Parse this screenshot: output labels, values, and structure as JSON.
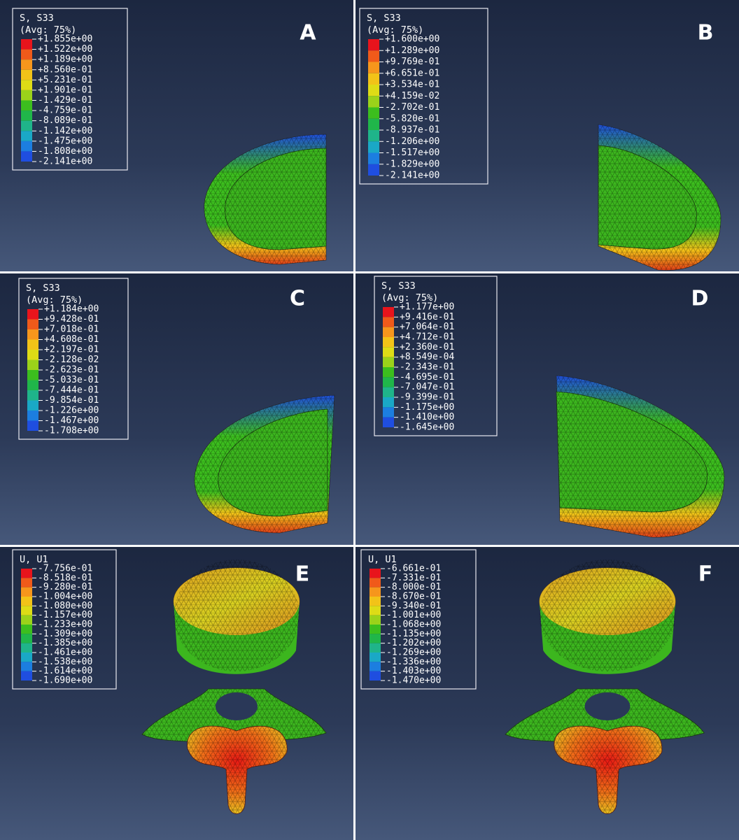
{
  "panels": [
    {
      "letter": "A",
      "legend_title": [
        "S, S33",
        "(Avg: 75%)"
      ],
      "legend_values": [
        "+1.855e+00",
        "+1.522e+00",
        "+1.189e+00",
        "+8.560e-01",
        "+5.231e-01",
        "+1.901e-01",
        "-1.429e-01",
        "-4.759e-01",
        "-8.089e-01",
        "-1.142e+00",
        "-1.475e+00",
        "-1.808e+00",
        "-2.141e+00"
      ]
    },
    {
      "letter": "B",
      "legend_title": [
        "S, S33",
        "(Avg: 75%)"
      ],
      "legend_values": [
        "+1.600e+00",
        "+1.289e+00",
        "+9.769e-01",
        "+6.651e-01",
        "+3.534e-01",
        "+4.159e-02",
        "-2.702e-01",
        "-5.820e-01",
        "-8.937e-01",
        "-1.206e+00",
        "-1.517e+00",
        "-1.829e+00",
        "-2.141e+00"
      ]
    },
    {
      "letter": "C",
      "legend_title": [
        "S, S33",
        "(Avg: 75%)"
      ],
      "legend_values": [
        "+1.184e+00",
        "+9.428e-01",
        "+7.018e-01",
        "+4.608e-01",
        "+2.197e-01",
        "-2.128e-02",
        "-2.623e-01",
        "-5.033e-01",
        "-7.444e-01",
        "-9.854e-01",
        "-1.226e+00",
        "-1.467e+00",
        "-1.708e+00"
      ]
    },
    {
      "letter": "D",
      "legend_title": [
        "S, S33",
        "(Avg: 75%)"
      ],
      "legend_values": [
        "+1.177e+00",
        "+9.416e-01",
        "+7.064e-01",
        "+4.712e-01",
        "+2.360e-01",
        "+8.549e-04",
        "-2.343e-01",
        "-4.695e-01",
        "-7.047e-01",
        "-9.399e-01",
        "-1.175e+00",
        "-1.410e+00",
        "-1.645e+00"
      ]
    },
    {
      "letter": "E",
      "legend_title": [
        "U, U1"
      ],
      "legend_values": [
        "-7.756e-01",
        "-8.518e-01",
        "-9.280e-01",
        "-1.004e+00",
        "-1.080e+00",
        "-1.157e+00",
        "-1.233e+00",
        "-1.309e+00",
        "-1.385e+00",
        "-1.461e+00",
        "-1.538e+00",
        "-1.614e+00",
        "-1.690e+00"
      ]
    },
    {
      "letter": "F",
      "legend_title": [
        "U, U1"
      ],
      "legend_values": [
        "-6.661e-01",
        "-7.331e-01",
        "-8.000e-01",
        "-8.670e-01",
        "-9.340e-01",
        "-1.001e+00",
        "-1.068e+00",
        "-1.135e+00",
        "-1.202e+00",
        "-1.269e+00",
        "-1.336e+00",
        "-1.403e+00",
        "-1.470e+00"
      ]
    }
  ]
}
